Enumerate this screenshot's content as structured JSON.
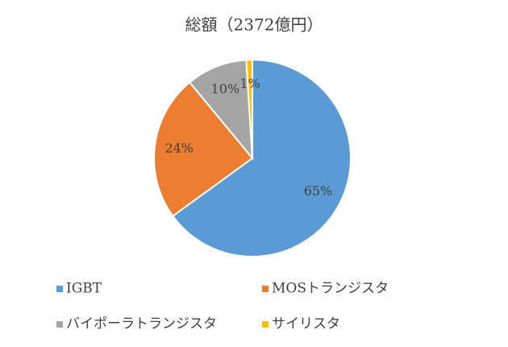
{
  "chart_data": {
    "type": "pie",
    "title": "総額（2372億円）",
    "categories": [
      "IGBT",
      "MOSトランジスタ",
      "バイポーラトランジスタ",
      "サイリスタ"
    ],
    "values": [
      65,
      24,
      10,
      1
    ],
    "value_labels": [
      "65%",
      "24%",
      "10%",
      "1%"
    ],
    "colors": [
      "#5b9bd5",
      "#ed7d31",
      "#a5a5a5",
      "#ffc000"
    ]
  }
}
